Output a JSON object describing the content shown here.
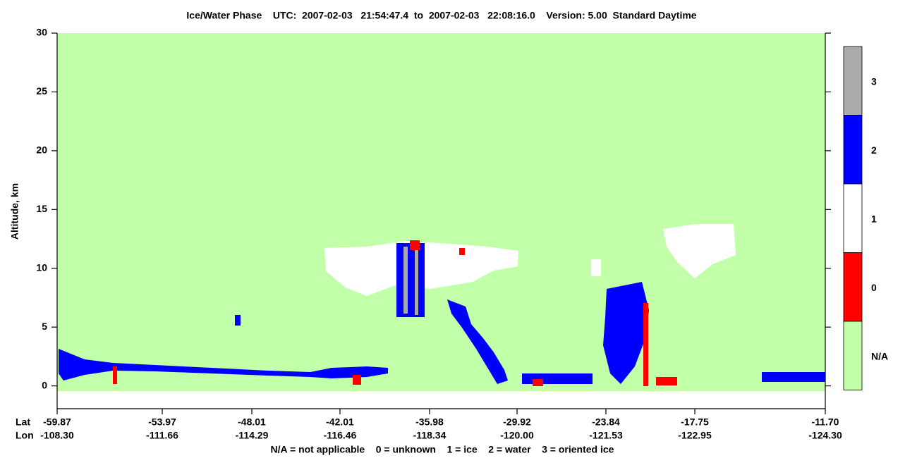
{
  "chart_data": {
    "type": "heatmap",
    "title": "Ice/Water Phase    UTC:  2007-02-03   21:54:47.4  to  2007-02-03   22:08:16.0    Version: 5.00  Standard Daytime",
    "y_label": "Altitude, km",
    "ylim": [
      -2,
      30
    ],
    "yticks": [
      0,
      5,
      10,
      15,
      20,
      25,
      30
    ],
    "x_row_labels": [
      "Lat",
      "Lon"
    ],
    "lat_ticks": [
      "-59.87",
      "-53.97",
      "-48.01",
      "-42.01",
      "-35.98",
      "-29.92",
      "-23.84",
      "-17.75",
      "-11.70"
    ],
    "lon_ticks": [
      "-108.30",
      "-111.66",
      "-114.29",
      "-116.46",
      "-118.34",
      "-120.00",
      "-121.53",
      "-122.95",
      "-124.30"
    ],
    "legend": [
      {
        "label": "3",
        "color": "#aaaaaa"
      },
      {
        "label": "2",
        "color": "#0000ff"
      },
      {
        "label": "1",
        "color": "#ffffff"
      },
      {
        "label": "0",
        "color": "#ff0000"
      },
      {
        "label": "N/A",
        "color": "#c1ffa9"
      }
    ],
    "note": "N/A = not applicable    0 = unknown    1 = ice    2 = water    3 = oriented ice"
  }
}
